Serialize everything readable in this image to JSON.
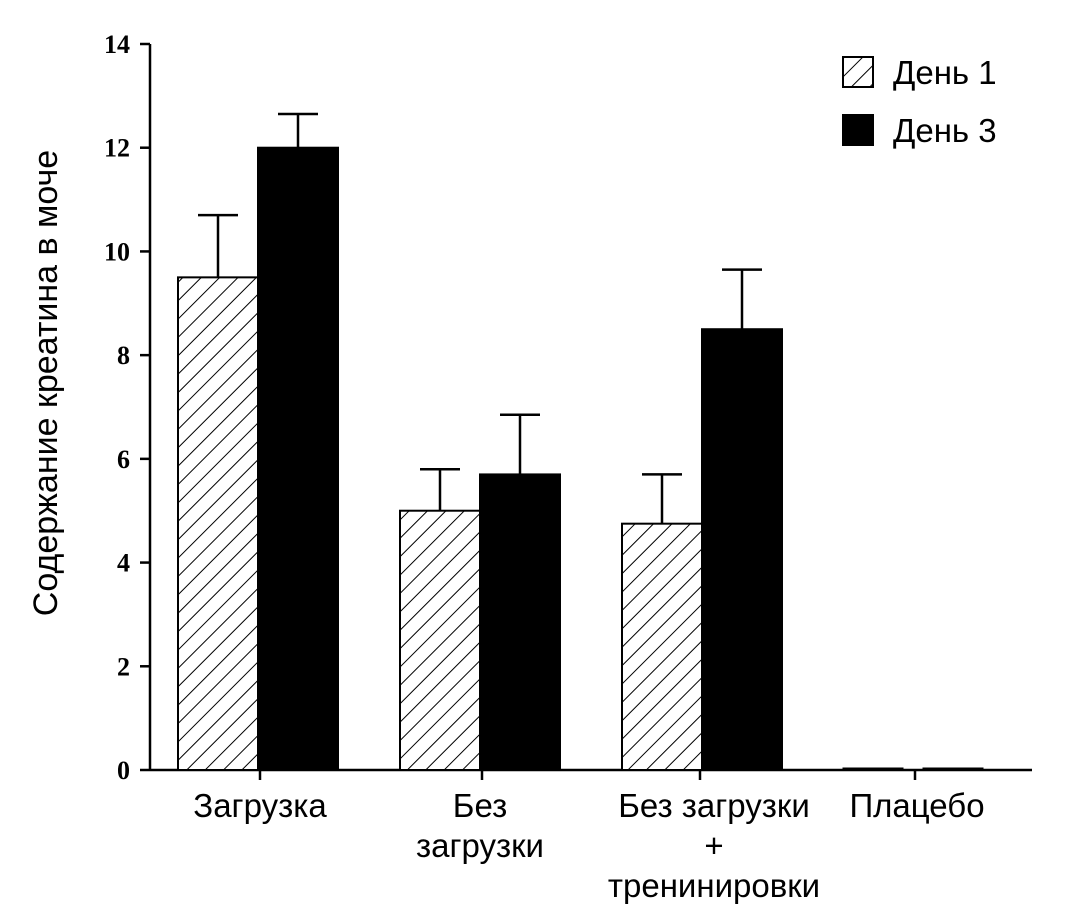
{
  "chart_data": {
    "type": "bar",
    "title": "",
    "xlabel": "",
    "ylabel": "Содержание креатина в моче",
    "ylim": [
      0,
      14
    ],
    "yticks": [
      0,
      2,
      4,
      6,
      8,
      10,
      12,
      14
    ],
    "categories": [
      [
        "Загрузка"
      ],
      [
        "Без",
        "загрузки"
      ],
      [
        "Без загрузки",
        "+",
        "тренинировки"
      ],
      [
        "Плацебо"
      ]
    ],
    "series": [
      {
        "name": "День 1",
        "pattern": "hatched",
        "values": [
          9.5,
          5.0,
          4.75,
          0.05
        ],
        "errors": [
          1.2,
          0.8,
          0.95,
          0
        ]
      },
      {
        "name": "День 3",
        "pattern": "solid",
        "values": [
          12.0,
          5.7,
          8.5,
          0.05
        ],
        "errors": [
          0.65,
          1.15,
          1.15,
          0
        ]
      }
    ],
    "legend_position": "top-right",
    "grid": false,
    "colors": {
      "solid": "#000000",
      "hatch": "#000000",
      "background": "#ffffff"
    }
  }
}
